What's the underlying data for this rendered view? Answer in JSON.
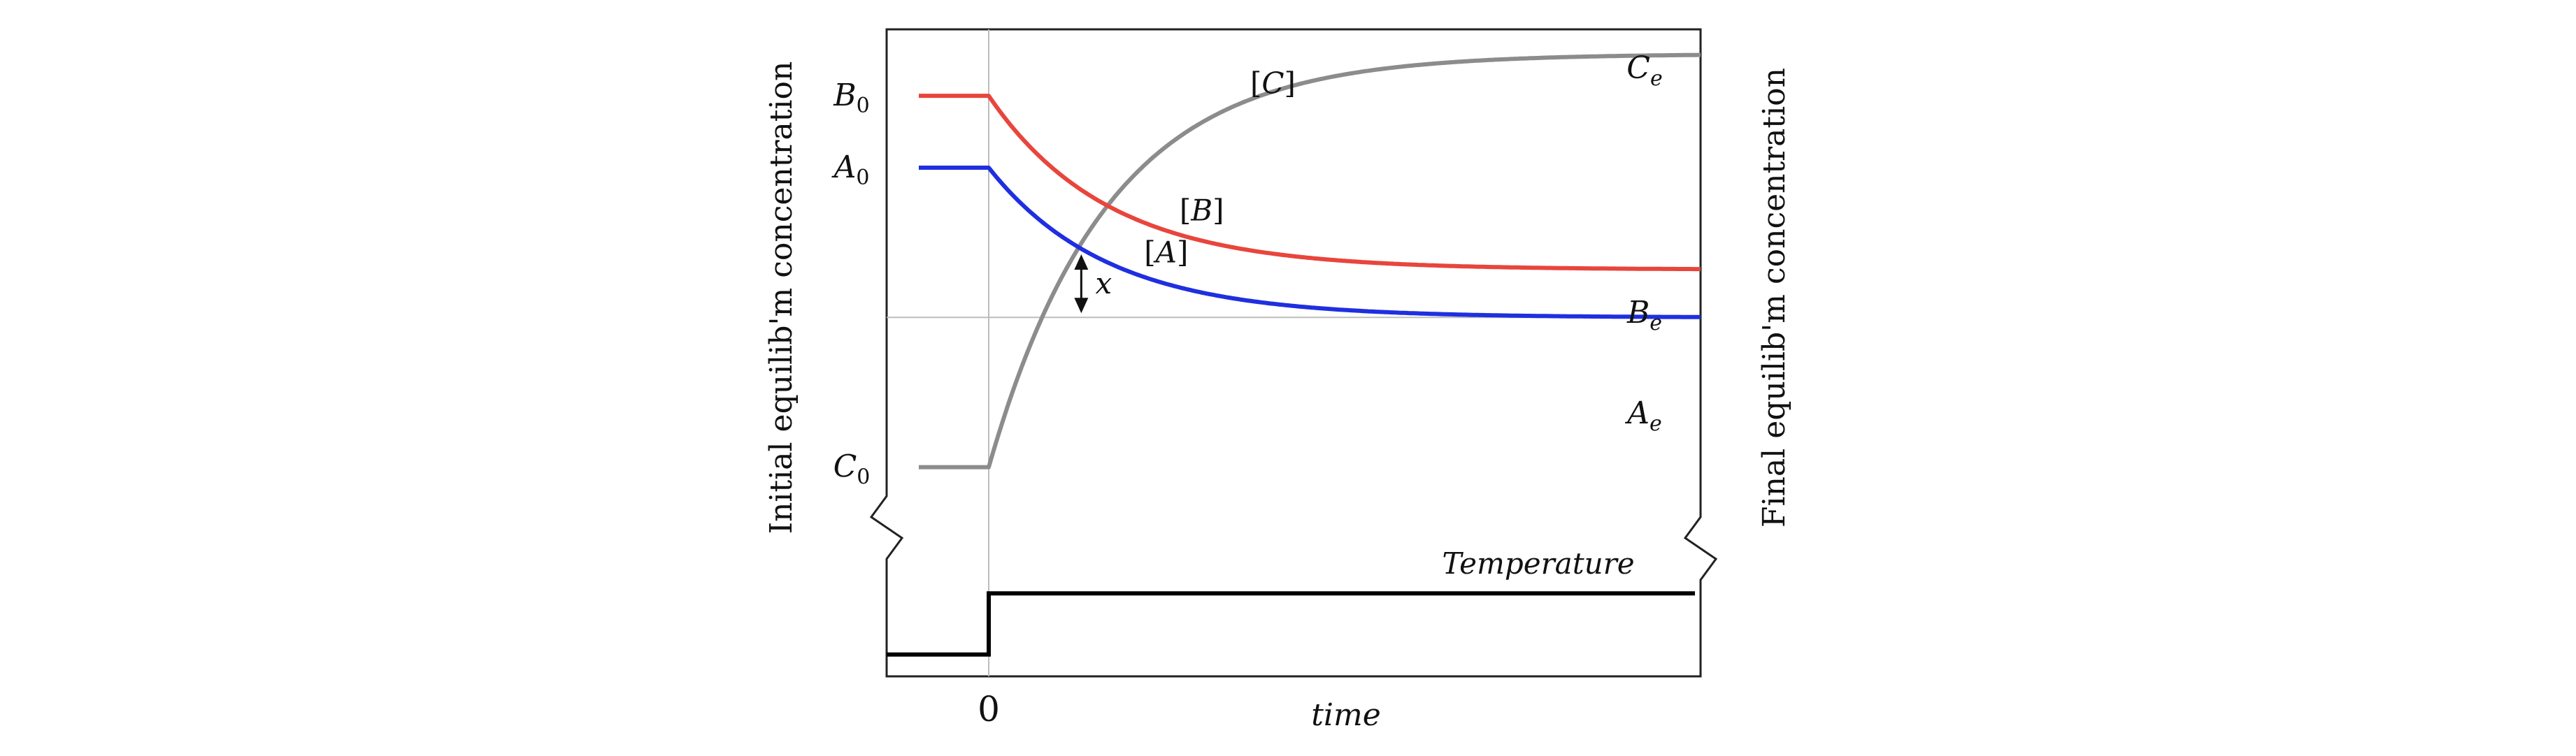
{
  "chart_data": {
    "type": "line",
    "title": "",
    "xlabel": "time",
    "ylabel_left": "Initial equilib'm concentration",
    "ylabel_right": "Final equilib'm concentration",
    "x_tick_label": "0",
    "x_range": [
      -1,
      10
    ],
    "y_range": [
      0.25,
      1.02
    ],
    "temperature_range": [
      -1,
      1
    ],
    "series": [
      {
        "name": "[C]",
        "color": "#8c8c8c",
        "start_label": "C",
        "start_sub": "0",
        "end_label": "C",
        "end_sub": "e",
        "initial": 0.31,
        "final": 1.0,
        "rate": 0.6
      },
      {
        "name": "[B]",
        "color": "#e8453c",
        "start_label": "B",
        "start_sub": "0",
        "end_label": "B",
        "end_sub": "e",
        "initial": 0.93,
        "final": 0.64,
        "rate": 0.6
      },
      {
        "name": "[A]",
        "color": "#1f2fe0",
        "start_label": "A",
        "start_sub": "0",
        "end_label": "A",
        "end_sub": "e",
        "initial": 0.81,
        "final": 0.56,
        "rate": 0.6
      }
    ],
    "equilibrium_line": 0.56,
    "x_annotation": {
      "label": "x",
      "at_time": 1.3
    },
    "temperature": {
      "label": "Temperature",
      "color": "#000000",
      "before": -0.6,
      "after": 0.6
    }
  }
}
